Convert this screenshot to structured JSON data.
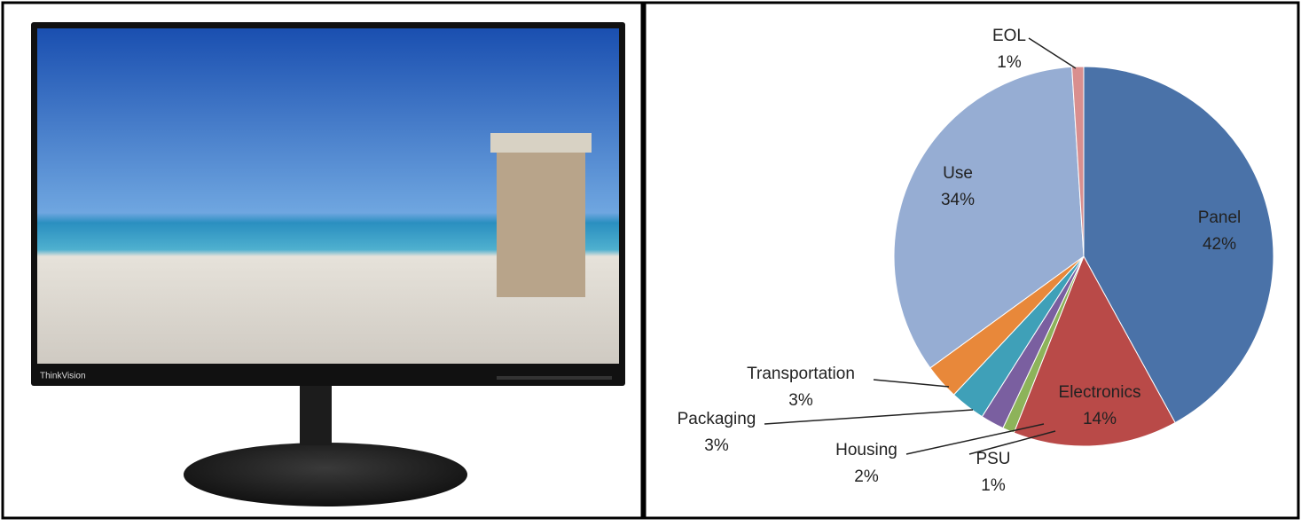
{
  "chart_data": {
    "type": "pie",
    "categories": [
      "Panel",
      "Electronics",
      "PSU",
      "Housing",
      "Packaging",
      "Transportation",
      "Use",
      "EOL"
    ],
    "values": [
      42,
      14,
      1,
      2,
      3,
      3,
      34,
      1
    ],
    "value_labels": [
      "42%",
      "14%",
      "1%",
      "2%",
      "3%",
      "3%",
      "34%",
      "1%"
    ],
    "colors": [
      "#4a72a8",
      "#b94a48",
      "#8db35a",
      "#7a5fa0",
      "#3fa0b8",
      "#e8883a",
      "#96add3",
      "#d98f8f"
    ]
  },
  "image_text": {
    "brand": "ThinkVision"
  }
}
